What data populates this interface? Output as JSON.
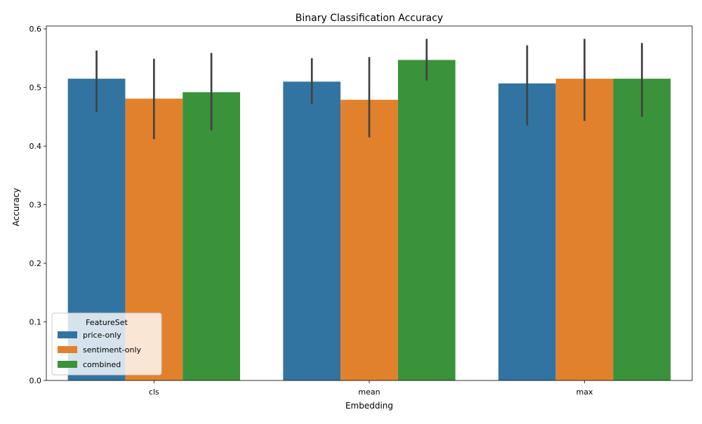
{
  "chart_data": {
    "type": "bar",
    "title": "Binary Classification Accuracy",
    "xlabel": "Embedding",
    "ylabel": "Accuracy",
    "categories": [
      "cls",
      "mean",
      "max"
    ],
    "ylim": [
      0,
      0.605
    ],
    "yticks": [
      "0.0",
      "0.1",
      "0.2",
      "0.3",
      "0.4",
      "0.5",
      "0.6"
    ],
    "grid": false,
    "legend": {
      "title": "FeatureSet",
      "placement": "lower-left"
    },
    "series": [
      {
        "name": "price-only",
        "color": "#3274a1",
        "values": [
          0.515,
          0.51,
          0.507
        ],
        "error_low": [
          0.458,
          0.472,
          0.435
        ],
        "error_high": [
          0.563,
          0.55,
          0.572
        ]
      },
      {
        "name": "sentiment-only",
        "color": "#e1812c",
        "values": [
          0.481,
          0.479,
          0.515
        ],
        "error_low": [
          0.412,
          0.415,
          0.443
        ],
        "error_high": [
          0.549,
          0.552,
          0.583
        ]
      },
      {
        "name": "combined",
        "color": "#3a923a",
        "values": [
          0.492,
          0.547,
          0.515
        ],
        "error_low": [
          0.427,
          0.512,
          0.45
        ],
        "error_high": [
          0.559,
          0.583,
          0.576
        ]
      }
    ]
  }
}
